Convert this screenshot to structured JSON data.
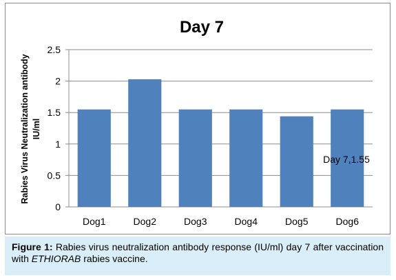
{
  "chart_data": {
    "type": "bar",
    "title": "Day 7",
    "ylabel": "Rabies Virus Neutralization antibody IU/ml",
    "ylabel_lines": [
      "Rabies Virus Neutralization antibody",
      "IU/ml"
    ],
    "categories": [
      "Dog1",
      "Dog2",
      "Dog3",
      "Dog4",
      "Dog5",
      "Dog6"
    ],
    "values": [
      1.55,
      2.03,
      1.55,
      1.55,
      1.44,
      1.55
    ],
    "ylim": [
      0,
      2.5
    ],
    "yticks": [
      0,
      0.5,
      1,
      1.5,
      2,
      2.5
    ],
    "ytick_labels": [
      "0",
      "0.5",
      "1",
      "1.5",
      "2",
      "2.5"
    ],
    "grid": true,
    "bar_color": "#4f81bd",
    "annotation": "Day 7,1.55"
  },
  "caption": {
    "label": "Figure 1:",
    "text_before": " Rabies virus neutralization antibody response (IU/ml) day 7 after vaccination with ",
    "italic": "ETHIORAB",
    "text_after": " rabies vaccine."
  }
}
